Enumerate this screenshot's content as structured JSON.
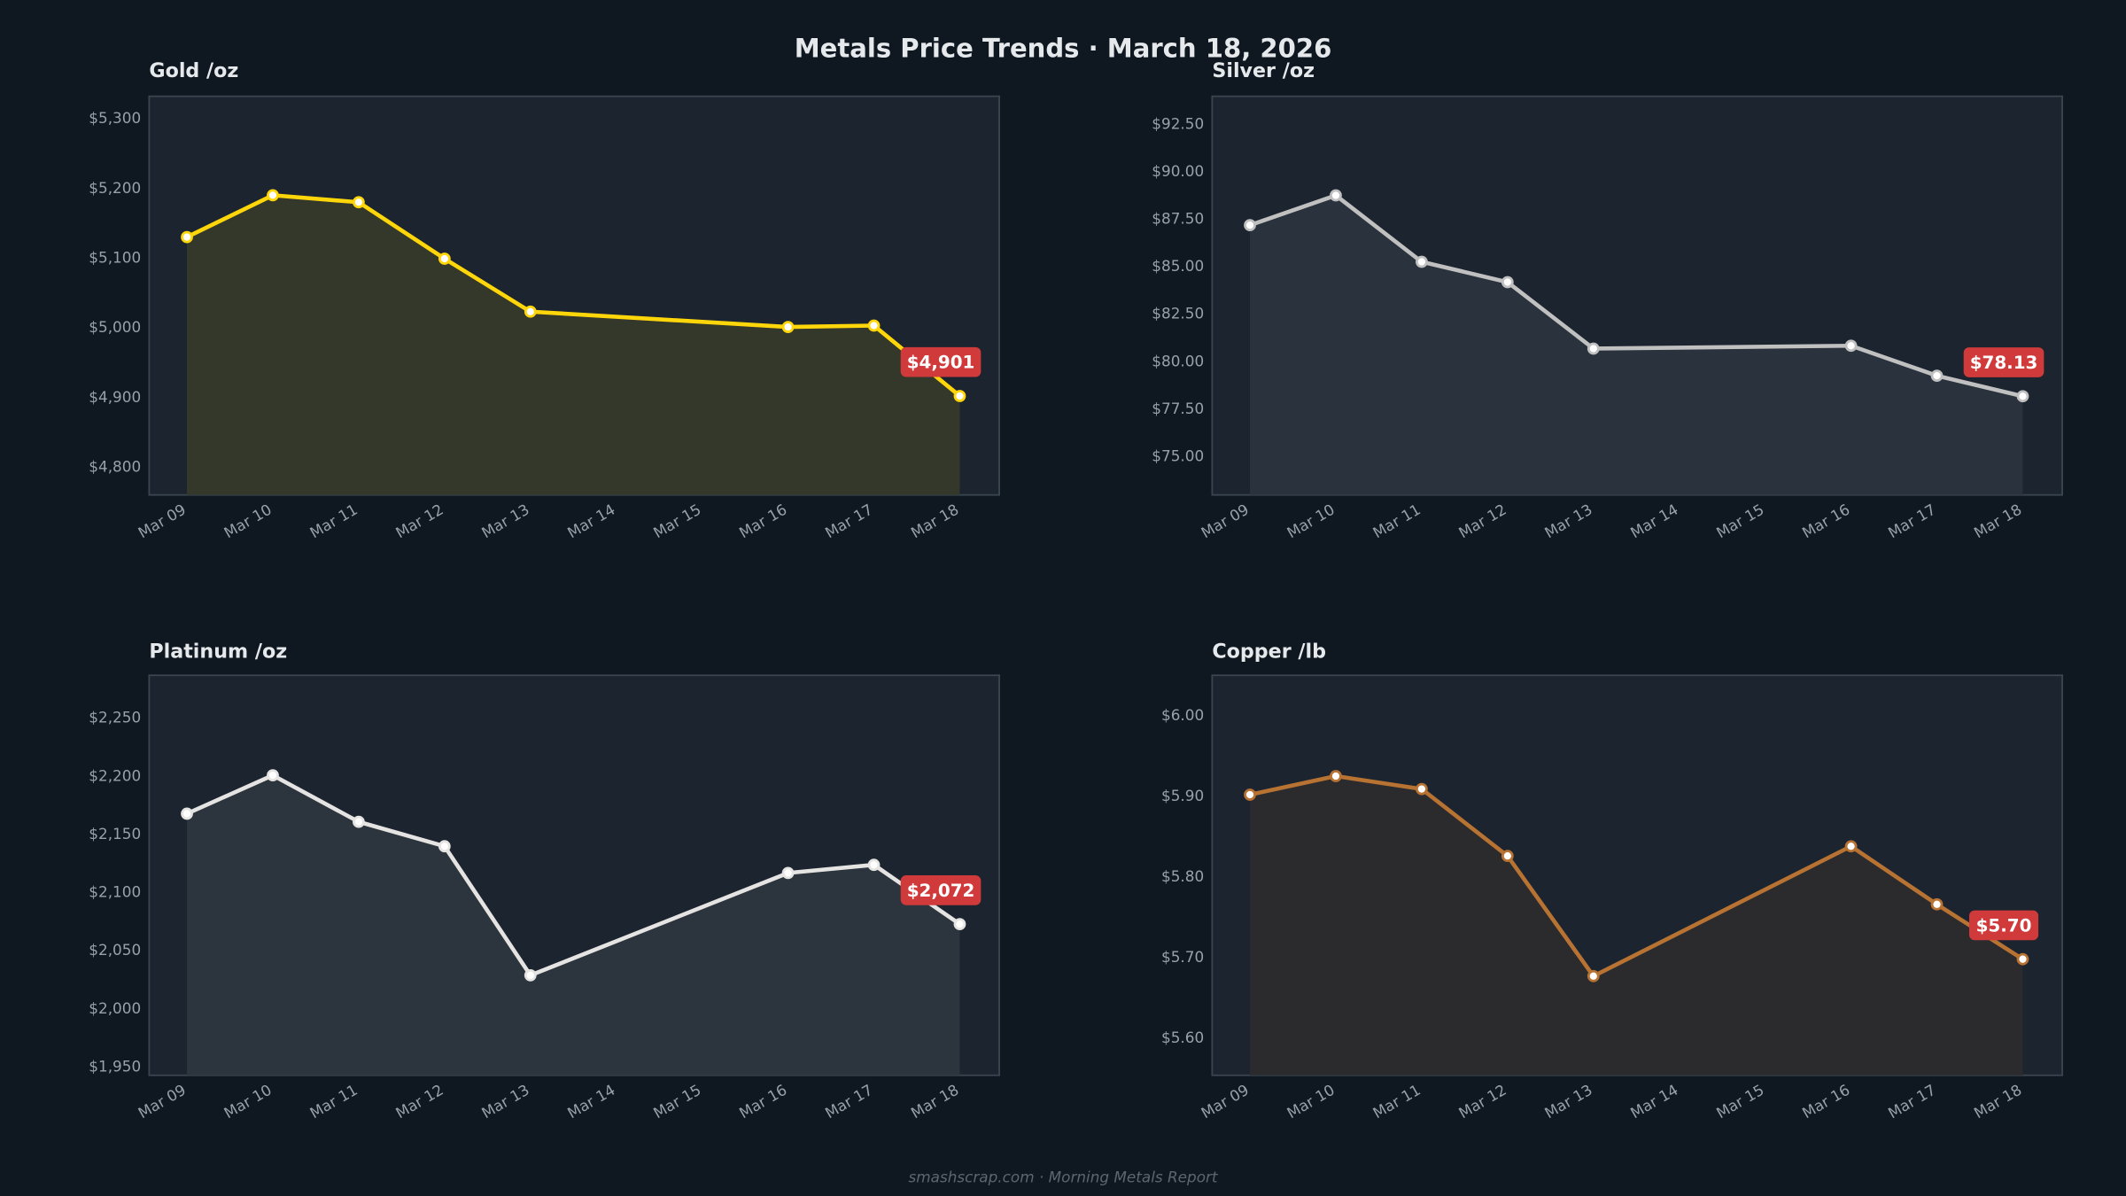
{
  "header": {
    "title": "Metals Price Trends  ·  March 18, 2026"
  },
  "footer": {
    "text": "smashscrap.com  ·  Morning Metals Report"
  },
  "colors": {
    "background": "#0f1721",
    "plot_background": "#1b242f",
    "badge": "#d13a3a"
  },
  "chart_data": [
    {
      "type": "area",
      "title": "Gold  /oz",
      "categories": [
        "Mar 09",
        "Mar 10",
        "Mar 11",
        "Mar 12",
        "Mar 13",
        "Mar 14",
        "Mar 15",
        "Mar 16",
        "Mar 17",
        "Mar 18"
      ],
      "x": [
        "Mar 09",
        "Mar 10",
        "Mar 11",
        "Mar 12",
        "Mar 13",
        "Mar 16",
        "Mar 17",
        "Mar 18"
      ],
      "values": [
        5129,
        5189,
        5179,
        5098,
        5022,
        5000,
        5002,
        4901
      ],
      "yticks": [
        "$4,800",
        "$4,900",
        "$5,000",
        "$5,100",
        "$5,200",
        "$5,300"
      ],
      "ytick_values": [
        4800,
        4900,
        5000,
        5100,
        5200,
        5300
      ],
      "ylim": [
        4759,
        5331
      ],
      "last_label": "$4,901",
      "line_color": "#ffd60a",
      "fill_color": "#33382a"
    },
    {
      "type": "area",
      "title": "Silver  /oz",
      "categories": [
        "Mar 09",
        "Mar 10",
        "Mar 11",
        "Mar 12",
        "Mar 13",
        "Mar 14",
        "Mar 15",
        "Mar 16",
        "Mar 17",
        "Mar 18"
      ],
      "x": [
        "Mar 09",
        "Mar 10",
        "Mar 11",
        "Mar 12",
        "Mar 13",
        "Mar 16",
        "Mar 17",
        "Mar 18"
      ],
      "values": [
        87.14,
        88.71,
        85.21,
        84.14,
        80.64,
        80.79,
        79.21,
        78.13
      ],
      "yticks": [
        "$75.00",
        "$77.50",
        "$80.00",
        "$82.50",
        "$85.00",
        "$87.50",
        "$90.00",
        "$92.50"
      ],
      "ytick_values": [
        75,
        77.5,
        80,
        82.5,
        85,
        87.5,
        90,
        92.5
      ],
      "ylim": [
        72.93,
        93.93
      ],
      "last_label": "$78.13",
      "line_color": "#c0c0c0",
      "fill_color": "#2a333d"
    },
    {
      "type": "area",
      "title": "Platinum  /oz",
      "categories": [
        "Mar 09",
        "Mar 10",
        "Mar 11",
        "Mar 12",
        "Mar 13",
        "Mar 14",
        "Mar 15",
        "Mar 16",
        "Mar 17",
        "Mar 18"
      ],
      "x": [
        "Mar 09",
        "Mar 10",
        "Mar 11",
        "Mar 12",
        "Mar 13",
        "Mar 16",
        "Mar 17",
        "Mar 18"
      ],
      "values": [
        2167,
        2200,
        2160,
        2139,
        2028,
        2116,
        2123,
        2072
      ],
      "yticks": [
        "$1,950",
        "$2,000",
        "$2,050",
        "$2,100",
        "$2,150",
        "$2,200",
        "$2,250"
      ],
      "ytick_values": [
        1950,
        2000,
        2050,
        2100,
        2150,
        2200,
        2250
      ],
      "ylim": [
        1942,
        2286
      ],
      "last_label": "$2,072",
      "line_color": "#e5e4e2",
      "fill_color": "#2c353d"
    },
    {
      "type": "area",
      "title": "Copper  /lb",
      "categories": [
        "Mar 09",
        "Mar 10",
        "Mar 11",
        "Mar 12",
        "Mar 13",
        "Mar 14",
        "Mar 15",
        "Mar 16",
        "Mar 17",
        "Mar 18"
      ],
      "x": [
        "Mar 09",
        "Mar 10",
        "Mar 11",
        "Mar 12",
        "Mar 13",
        "Mar 16",
        "Mar 17",
        "Mar 18"
      ],
      "values": [
        5.901,
        5.924,
        5.908,
        5.825,
        5.676,
        5.837,
        5.765,
        5.697
      ],
      "yticks": [
        "$5.60",
        "$5.70",
        "$5.80",
        "$5.90",
        "$6.00"
      ],
      "ytick_values": [
        5.6,
        5.7,
        5.8,
        5.9,
        6.0
      ],
      "ylim": [
        5.553,
        6.049
      ],
      "last_label": "$5.70",
      "line_color": "#b87333",
      "fill_color": "#2b2b2e"
    }
  ]
}
